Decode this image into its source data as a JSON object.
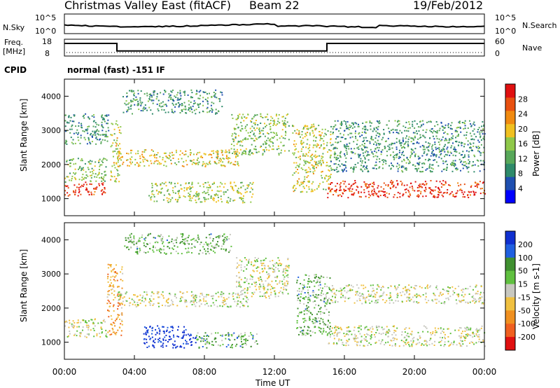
{
  "header": {
    "station": "Christmas Valley East (fitACF)",
    "beam": "Beam 22",
    "date": "19/Feb/2012"
  },
  "strip_labels": {
    "nsky": "N.Sky",
    "nsearch": "N.Search",
    "freq_line1": "Freq.",
    "freq_line2": "[MHz]",
    "nave": "Nave",
    "cpid": "CPID",
    "cpid_value": "normal (fast) -151 IF",
    "noise_tick_hi": "10^5",
    "noise_tick_lo": "10^0",
    "freq_tick_hi": "18",
    "freq_tick_lo": "8",
    "nave_tick_hi": "60",
    "nave_tick_lo": "0"
  },
  "colors": {
    "power_scale": [
      "#0000ff",
      "#1f4fb0",
      "#2e8a6a",
      "#58a85a",
      "#8fc84a",
      "#f0c020",
      "#f08a10",
      "#e85010",
      "#e01010"
    ],
    "velocity_scale": [
      "#1030d0",
      "#2060e0",
      "#409030",
      "#60c040",
      "#c8c8c0",
      "#f0c040",
      "#f09020",
      "#f06020",
      "#e01010"
    ]
  },
  "chart_data": [
    {
      "type": "heatmap",
      "name": "power",
      "ylabel": "Slant Range [km]",
      "yticks": [
        "1000",
        "2000",
        "3000",
        "4000"
      ],
      "ylim": [
        500,
        4500
      ],
      "xlim_hours": [
        0,
        24
      ],
      "colorbar_label": "Power [dB]",
      "colorbar_ticks": [
        "4",
        "8",
        "12",
        "16",
        "20",
        "24",
        "28"
      ],
      "regions": [
        {
          "t0": 0.0,
          "t1": 2.4,
          "r0": 1100,
          "r1": 1500,
          "level": 0.95
        },
        {
          "t0": 0.0,
          "t1": 2.4,
          "r0": 1500,
          "r1": 2200,
          "level": 0.45
        },
        {
          "t0": 0.0,
          "t1": 2.5,
          "r0": 2600,
          "r1": 3500,
          "level": 0.3
        },
        {
          "t0": 2.6,
          "t1": 3.2,
          "r0": 1500,
          "r1": 3300,
          "level": 0.55
        },
        {
          "t0": 3.0,
          "t1": 10.0,
          "r0": 1950,
          "r1": 2450,
          "level": 0.6
        },
        {
          "t0": 3.3,
          "t1": 9.0,
          "r0": 3500,
          "r1": 4200,
          "level": 0.3
        },
        {
          "t0": 4.8,
          "t1": 10.8,
          "r0": 900,
          "r1": 1500,
          "level": 0.5
        },
        {
          "t0": 9.5,
          "t1": 12.8,
          "r0": 2300,
          "r1": 3500,
          "level": 0.45
        },
        {
          "t0": 13.0,
          "t1": 15.2,
          "r0": 1200,
          "r1": 3200,
          "level": 0.55
        },
        {
          "t0": 15.0,
          "t1": 24.0,
          "r0": 1050,
          "r1": 1550,
          "level": 0.95
        },
        {
          "t0": 15.2,
          "t1": 24.0,
          "r0": 1800,
          "r1": 3300,
          "level": 0.3
        }
      ]
    },
    {
      "type": "heatmap",
      "name": "velocity",
      "ylabel": "Slant Range [km]",
      "yticks": [
        "1000",
        "2000",
        "3000",
        "4000"
      ],
      "ylim": [
        500,
        4500
      ],
      "xlim_hours": [
        0,
        24
      ],
      "xlabel": "Time UT",
      "xticks": [
        "00:00",
        "04:00",
        "08:00",
        "12:00",
        "16:00",
        "20:00",
        "00:00"
      ],
      "colorbar_label": "Velocity [m s-1]",
      "colorbar_ticks": [
        "200",
        "100",
        "50",
        "15",
        "-15",
        "-50",
        "-100",
        "-200"
      ],
      "regions": [
        {
          "t0": 0.0,
          "t1": 2.4,
          "r0": 1150,
          "r1": 1700,
          "level": 0.5
        },
        {
          "t0": 2.4,
          "t1": 3.3,
          "r0": 1200,
          "r1": 3300,
          "level": 0.7
        },
        {
          "t0": 3.0,
          "t1": 10.5,
          "r0": 2050,
          "r1": 2500,
          "level": 0.5
        },
        {
          "t0": 3.4,
          "t1": 9.5,
          "r0": 3600,
          "r1": 4200,
          "level": 0.35
        },
        {
          "t0": 4.5,
          "t1": 7.5,
          "r0": 850,
          "r1": 1500,
          "level": 0.0
        },
        {
          "t0": 7.5,
          "t1": 11.0,
          "r0": 850,
          "r1": 1300,
          "level": 0.32
        },
        {
          "t0": 9.8,
          "t1": 12.8,
          "r0": 2300,
          "r1": 3500,
          "level": 0.5
        },
        {
          "t0": 13.2,
          "t1": 15.2,
          "r0": 1200,
          "r1": 3000,
          "level": 0.35
        },
        {
          "t0": 15.0,
          "t1": 24.0,
          "r0": 900,
          "r1": 1500,
          "level": 0.5
        },
        {
          "t0": 15.2,
          "t1": 24.0,
          "r0": 2150,
          "r1": 2700,
          "level": 0.5
        }
      ]
    },
    {
      "type": "line",
      "name": "frequency",
      "ylabel": "Freq. [MHz]",
      "ylim": [
        8,
        18
      ],
      "x": [
        0.0,
        3.0,
        3.0,
        15.0,
        15.0,
        24.0
      ],
      "values": [
        15.5,
        15.5,
        11.0,
        11.0,
        15.5,
        15.5
      ]
    }
  ],
  "axis": {
    "time_label": "Time UT",
    "power_ylabel": "Slant Range [km]",
    "velocity_ylabel": "Slant Range [km]"
  }
}
